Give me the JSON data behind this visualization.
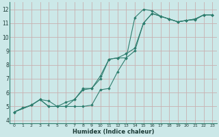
{
  "xlabel": "Humidex (Indice chaleur)",
  "background_color": "#cce8e8",
  "grid_color": "#c8b0b0",
  "line_color": "#2e7d6e",
  "xlim": [
    -0.5,
    23.5
  ],
  "ylim": [
    3.8,
    12.5
  ],
  "xticks": [
    0,
    1,
    2,
    3,
    4,
    5,
    6,
    7,
    8,
    9,
    10,
    11,
    12,
    13,
    14,
    15,
    16,
    17,
    18,
    19,
    20,
    21,
    22,
    23
  ],
  "yticks": [
    4,
    5,
    6,
    7,
    8,
    9,
    10,
    11,
    12
  ],
  "series": [
    {
      "x": [
        0,
        1,
        2,
        3,
        4,
        5,
        6,
        7,
        8,
        9,
        10,
        11,
        12,
        13,
        14,
        15,
        16,
        17,
        18,
        19,
        20,
        21,
        22,
        23
      ],
      "y": [
        4.6,
        4.9,
        5.1,
        5.5,
        5.4,
        5.0,
        5.0,
        5.0,
        5.0,
        5.1,
        6.2,
        6.3,
        7.5,
        8.5,
        11.4,
        12.0,
        11.9,
        11.5,
        11.3,
        11.1,
        11.2,
        11.25,
        11.6,
        11.6
      ]
    },
    {
      "x": [
        0,
        2,
        3,
        4,
        5,
        6,
        7,
        8,
        9,
        10,
        11,
        12,
        13,
        14,
        15,
        16,
        17,
        18,
        19,
        20,
        21,
        22,
        23
      ],
      "y": [
        4.6,
        5.1,
        5.5,
        5.0,
        5.0,
        5.3,
        5.5,
        6.2,
        6.3,
        7.2,
        8.4,
        8.5,
        8.8,
        9.2,
        11.0,
        11.7,
        11.5,
        11.3,
        11.1,
        11.2,
        11.3,
        11.6,
        11.6
      ]
    },
    {
      "x": [
        0,
        2,
        3,
        4,
        5,
        6,
        7,
        8,
        9,
        10,
        11,
        12,
        13,
        14,
        15,
        16,
        17,
        18,
        19,
        20,
        21,
        22,
        23
      ],
      "y": [
        4.6,
        5.1,
        5.5,
        5.0,
        5.0,
        5.0,
        5.5,
        6.3,
        6.3,
        7.0,
        8.4,
        8.5,
        8.5,
        9.0,
        11.0,
        11.7,
        11.5,
        11.3,
        11.1,
        11.2,
        11.3,
        11.6,
        11.6
      ]
    }
  ]
}
